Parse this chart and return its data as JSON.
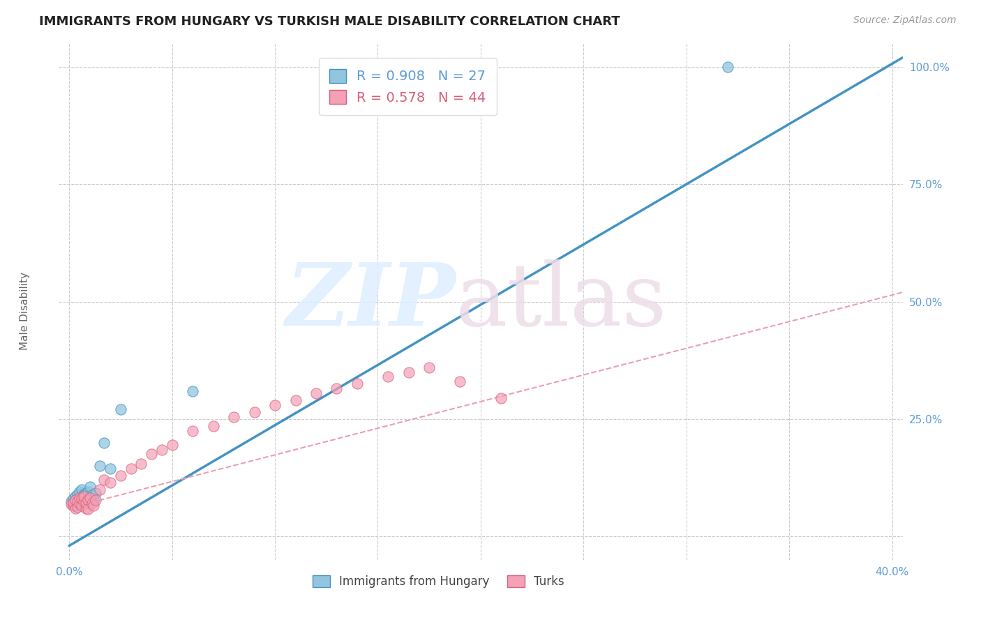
{
  "title": "IMMIGRANTS FROM HUNGARY VS TURKISH MALE DISABILITY CORRELATION CHART",
  "source": "Source: ZipAtlas.com",
  "ylabel": "Male Disability",
  "xlim": [
    -0.005,
    0.405
  ],
  "ylim": [
    -0.05,
    1.05
  ],
  "xticks": [
    0.0,
    0.05,
    0.1,
    0.15,
    0.2,
    0.25,
    0.3,
    0.35,
    0.4
  ],
  "yticks": [
    0.0,
    0.25,
    0.5,
    0.75,
    1.0
  ],
  "ytick_labels": [
    "",
    "25.0%",
    "50.0%",
    "75.0%",
    "100.0%"
  ],
  "xtick_labels": [
    "0.0%",
    "",
    "",
    "",
    "",
    "",
    "",
    "",
    "40.0%"
  ],
  "legend_r1": "R = 0.908",
  "legend_n1": "N = 27",
  "legend_r2": "R = 0.578",
  "legend_n2": "N = 44",
  "color_blue": "#92c5de",
  "color_blue_edge": "#4393c3",
  "color_pink": "#f4a0b5",
  "color_pink_edge": "#d6607a",
  "color_blue_line": "#4393c3",
  "color_pink_line": "#e8a0b0",
  "watermark_zip_color": "#ddeeff",
  "watermark_atlas_color": "#eedde8",
  "blue_scatter_x": [
    0.001,
    0.002,
    0.002,
    0.003,
    0.003,
    0.004,
    0.004,
    0.005,
    0.005,
    0.006,
    0.006,
    0.007,
    0.007,
    0.008,
    0.008,
    0.009,
    0.009,
    0.01,
    0.011,
    0.012,
    0.013,
    0.015,
    0.017,
    0.02,
    0.025,
    0.06,
    0.32
  ],
  "blue_scatter_y": [
    0.075,
    0.07,
    0.08,
    0.065,
    0.085,
    0.07,
    0.09,
    0.075,
    0.095,
    0.08,
    0.1,
    0.085,
    0.09,
    0.092,
    0.088,
    0.095,
    0.072,
    0.105,
    0.088,
    0.076,
    0.092,
    0.15,
    0.2,
    0.145,
    0.27,
    0.31,
    1.0
  ],
  "pink_scatter_x": [
    0.001,
    0.002,
    0.002,
    0.003,
    0.003,
    0.004,
    0.004,
    0.005,
    0.005,
    0.006,
    0.006,
    0.007,
    0.007,
    0.008,
    0.008,
    0.009,
    0.009,
    0.01,
    0.011,
    0.012,
    0.013,
    0.015,
    0.017,
    0.02,
    0.025,
    0.03,
    0.035,
    0.04,
    0.045,
    0.05,
    0.06,
    0.07,
    0.08,
    0.09,
    0.1,
    0.11,
    0.12,
    0.13,
    0.14,
    0.155,
    0.165,
    0.175,
    0.19,
    0.21
  ],
  "pink_scatter_y": [
    0.068,
    0.065,
    0.072,
    0.06,
    0.078,
    0.063,
    0.075,
    0.07,
    0.082,
    0.066,
    0.08,
    0.074,
    0.085,
    0.06,
    0.072,
    0.078,
    0.058,
    0.082,
    0.07,
    0.065,
    0.078,
    0.1,
    0.12,
    0.115,
    0.13,
    0.145,
    0.155,
    0.175,
    0.185,
    0.195,
    0.225,
    0.235,
    0.255,
    0.265,
    0.28,
    0.29,
    0.305,
    0.315,
    0.325,
    0.34,
    0.35,
    0.36,
    0.33,
    0.295
  ],
  "blue_line_x": [
    0.0,
    0.405
  ],
  "blue_line_y": [
    -0.02,
    1.02
  ],
  "pink_line_x": [
    0.0,
    0.405
  ],
  "pink_line_y": [
    0.06,
    0.52
  ]
}
